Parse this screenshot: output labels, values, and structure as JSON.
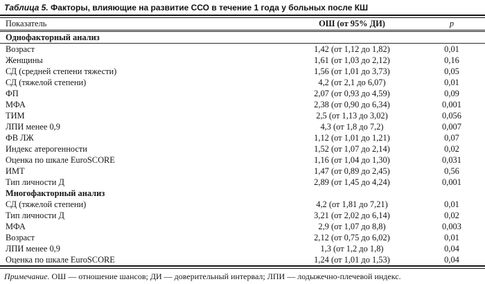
{
  "title": {
    "label": "Таблица 5.",
    "text": "Факторы, влияющие на развитие ССО в течение 1 года у больных после КШ"
  },
  "table": {
    "columns": {
      "indicator": "Показатель",
      "or_ci": "ОШ (от 95% ДИ)",
      "p": "p"
    },
    "sections": [
      {
        "header": "Однофакторный анализ",
        "rows": [
          [
            "Возраст",
            "1,42 (от 1,12 до 1,82)",
            "0,01"
          ],
          [
            "Женщины",
            "1,61 (от 1,03 до 2,12)",
            "0,16"
          ],
          [
            "СД (средней степени тяжести)",
            "1,56 (от 1,01 до 3,73)",
            "0,05"
          ],
          [
            "СД (тяжелой степени)",
            "4,2 (от 2,1 до 6,07)",
            "0,01"
          ],
          [
            "ФП",
            "2,07 (от 0,93 до 4,59)",
            "0,09"
          ],
          [
            "МФА",
            "2,38 (от 0,90 до 6,34)",
            "0,001"
          ],
          [
            "ТИМ",
            "2,5 (от 1,13 до 3,02)",
            "0,056"
          ],
          [
            "ЛПИ менее 0,9",
            "4,3 (от 1,8 до 7,2)",
            "0,007"
          ],
          [
            "ФВ ЛЖ",
            "1,12 (от 1,01 до 1,21)",
            "0,07"
          ],
          [
            "Индекс атерогенности",
            "1,52 (от 1,07 до 2,14)",
            "0,02"
          ],
          [
            "Оценка по шкале EuroSCORE",
            "1,16 (от 1,04 до 1,30)",
            "0,031"
          ],
          [
            "ИМТ",
            "1,47 (от 0,89 до 2,45)",
            "0,56"
          ],
          [
            "Тип личности Д",
            "2,89 (от 1,45 до 4,24)",
            "0,001"
          ]
        ]
      },
      {
        "header": "Многофакторный анализ",
        "rows": [
          [
            "СД (тяжелой степени)",
            "4,2 (от 1,81 до 7,21)",
            "0,01"
          ],
          [
            "Тип личности Д",
            "3,21 (от 2,02 до 6,14)",
            "0,02"
          ],
          [
            "МФА",
            "2,9 (от 1,07 до 8,8)",
            "0,003"
          ],
          [
            "Возраст",
            "2,12 (от 0,75 до 6,02)",
            "0,01"
          ],
          [
            "ЛПИ менее 0,9",
            "1,3 (от 1,2 до 1,8)",
            "0,04"
          ],
          [
            "Оценка по шкале EuroSCORE",
            "1,24 (от 1,01 до 1,53)",
            "0,04"
          ]
        ]
      }
    ]
  },
  "footnote": {
    "label": "Примечание.",
    "text": "ОШ — отношение шансов; ДИ — доверительный интервал; ЛПИ — лодыжечно-плечевой индекс."
  }
}
